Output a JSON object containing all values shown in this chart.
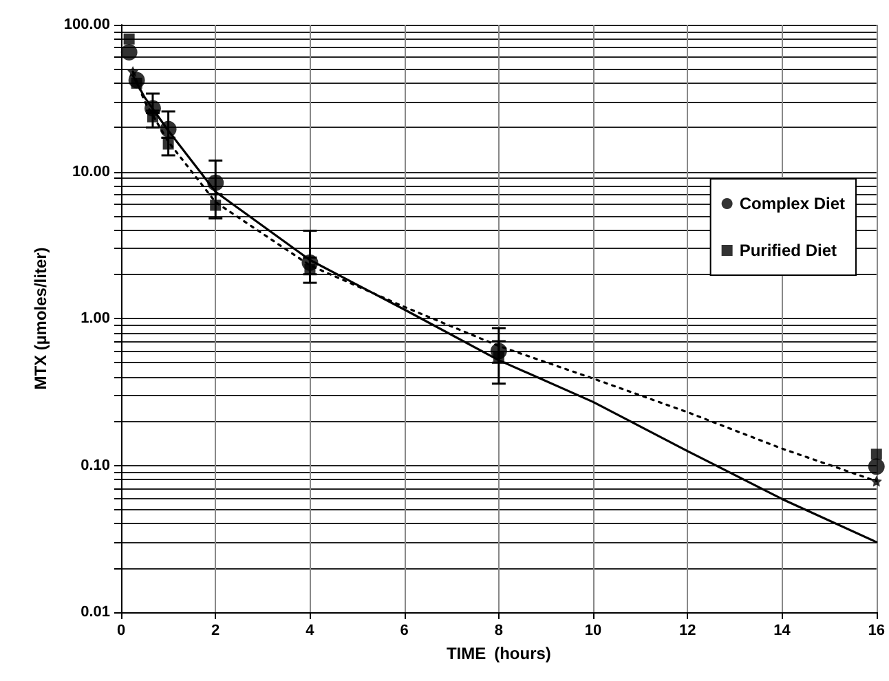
{
  "chart_data": {
    "type": "scatter",
    "xlabel": "TIME  (hours)",
    "ylabel": "MTX (µmoles/liter)",
    "xlim": [
      0,
      16
    ],
    "xticks": [
      0,
      2,
      4,
      6,
      8,
      10,
      12,
      14,
      16
    ],
    "ylim": [
      0.01,
      100
    ],
    "log": "y",
    "yticks": [
      {
        "value": 0.01,
        "label": "0.01"
      },
      {
        "value": 0.02,
        "label": null
      },
      {
        "value": 0.03,
        "label": null
      },
      {
        "value": 0.04,
        "label": null
      },
      {
        "value": 0.05,
        "label": null
      },
      {
        "value": 0.06,
        "label": null
      },
      {
        "value": 0.07,
        "label": null
      },
      {
        "value": 0.08,
        "label": null
      },
      {
        "value": 0.09,
        "label": null
      },
      {
        "value": 0.1,
        "label": "0.10"
      },
      {
        "value": 0.2,
        "label": null
      },
      {
        "value": 0.3,
        "label": null
      },
      {
        "value": 0.4,
        "label": null
      },
      {
        "value": 0.5,
        "label": null
      },
      {
        "value": 0.6,
        "label": null
      },
      {
        "value": 0.7,
        "label": null
      },
      {
        "value": 0.8,
        "label": null
      },
      {
        "value": 0.9,
        "label": null
      },
      {
        "value": 1,
        "label": "1.00"
      },
      {
        "value": 2,
        "label": null
      },
      {
        "value": 3,
        "label": null
      },
      {
        "value": 4,
        "label": null
      },
      {
        "value": 5,
        "label": null
      },
      {
        "value": 6,
        "label": null
      },
      {
        "value": 7,
        "label": null
      },
      {
        "value": 8,
        "label": null
      },
      {
        "value": 9,
        "label": null
      },
      {
        "value": 10,
        "label": "10.00"
      },
      {
        "value": 20,
        "label": null
      },
      {
        "value": 30,
        "label": null
      },
      {
        "value": 40,
        "label": null
      },
      {
        "value": 50,
        "label": null
      },
      {
        "value": 60,
        "label": null
      },
      {
        "value": 70,
        "label": null
      },
      {
        "value": 80,
        "label": null
      },
      {
        "value": 90,
        "label": null
      },
      {
        "value": 100,
        "label": "100.00"
      }
    ],
    "grid": true,
    "legend": "right",
    "series": [
      {
        "name": "Complex Diet",
        "color": "#000000",
        "marker": "circle",
        "x": [
          0.17,
          0.33,
          0.67,
          1,
          2,
          4,
          8,
          16
        ],
        "values": [
          65,
          42,
          27,
          19.5,
          8.4,
          2.4,
          0.6,
          0.098
        ],
        "errors": [
          null,
          null,
          [
            25,
            34
          ],
          [
            17,
            25.7
          ],
          [
            7,
            11.9
          ],
          [
            2,
            3.96
          ],
          [
            0.5,
            0.86
          ],
          null
        ]
      },
      {
        "name": "Purified Diet",
        "color": "#000000",
        "marker": "square",
        "x": [
          0.17,
          0.33,
          0.67,
          1,
          2,
          4,
          8,
          16
        ],
        "values": [
          80,
          40,
          23.6,
          15.4,
          5.9,
          2.15,
          0.55,
          0.119
        ],
        "errors": [
          null,
          null,
          [
            20,
            26
          ],
          [
            12.9,
            17
          ],
          [
            4.8,
            7
          ],
          [
            1.75,
            2.6
          ],
          [
            0.36,
            0.7
          ],
          null
        ]
      },
      {
        "type": "line",
        "color": "#000000",
        "marker": "none",
        "line_style": "solid",
        "x": [
          0.25,
          0.5,
          1,
          2,
          4,
          6,
          8,
          10,
          12,
          14,
          16
        ],
        "values": [
          45,
          32,
          19,
          7.3,
          2.5,
          1.15,
          0.52,
          0.27,
          0.125,
          0.059,
          0.03
        ]
      },
      {
        "type": "line",
        "color": "#000000",
        "marker": "none",
        "line_style": "dotted",
        "x": [
          0.25,
          0.5,
          1,
          2,
          4,
          6,
          8,
          10,
          12,
          14,
          16
        ],
        "values": [
          48,
          30,
          16,
          6.2,
          2.3,
          1.2,
          0.65,
          0.39,
          0.23,
          0.13,
          0.078
        ]
      },
      {
        "type": "scatter",
        "color": "#000000",
        "marker": "star",
        "x": [
          0.25,
          16
        ],
        "values": [
          48,
          0.078
        ]
      }
    ]
  }
}
